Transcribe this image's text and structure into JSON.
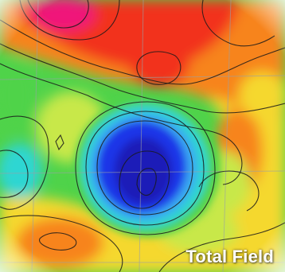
{
  "map": {
    "title": "Total Field",
    "colors": {
      "magenta": "#f0147a",
      "red": "#f2301c",
      "orange": "#f7841c",
      "yellow": "#f5d82e",
      "light_green": "#c8e84a",
      "green": "#4fd34a",
      "cyan": "#2fd6d2",
      "light_blue": "#3aa8f2",
      "blue": "#1a34e8",
      "deep_blue": "#1a1fb8",
      "contour": "#1a1a1a",
      "grid": "#9aa0a6"
    }
  }
}
